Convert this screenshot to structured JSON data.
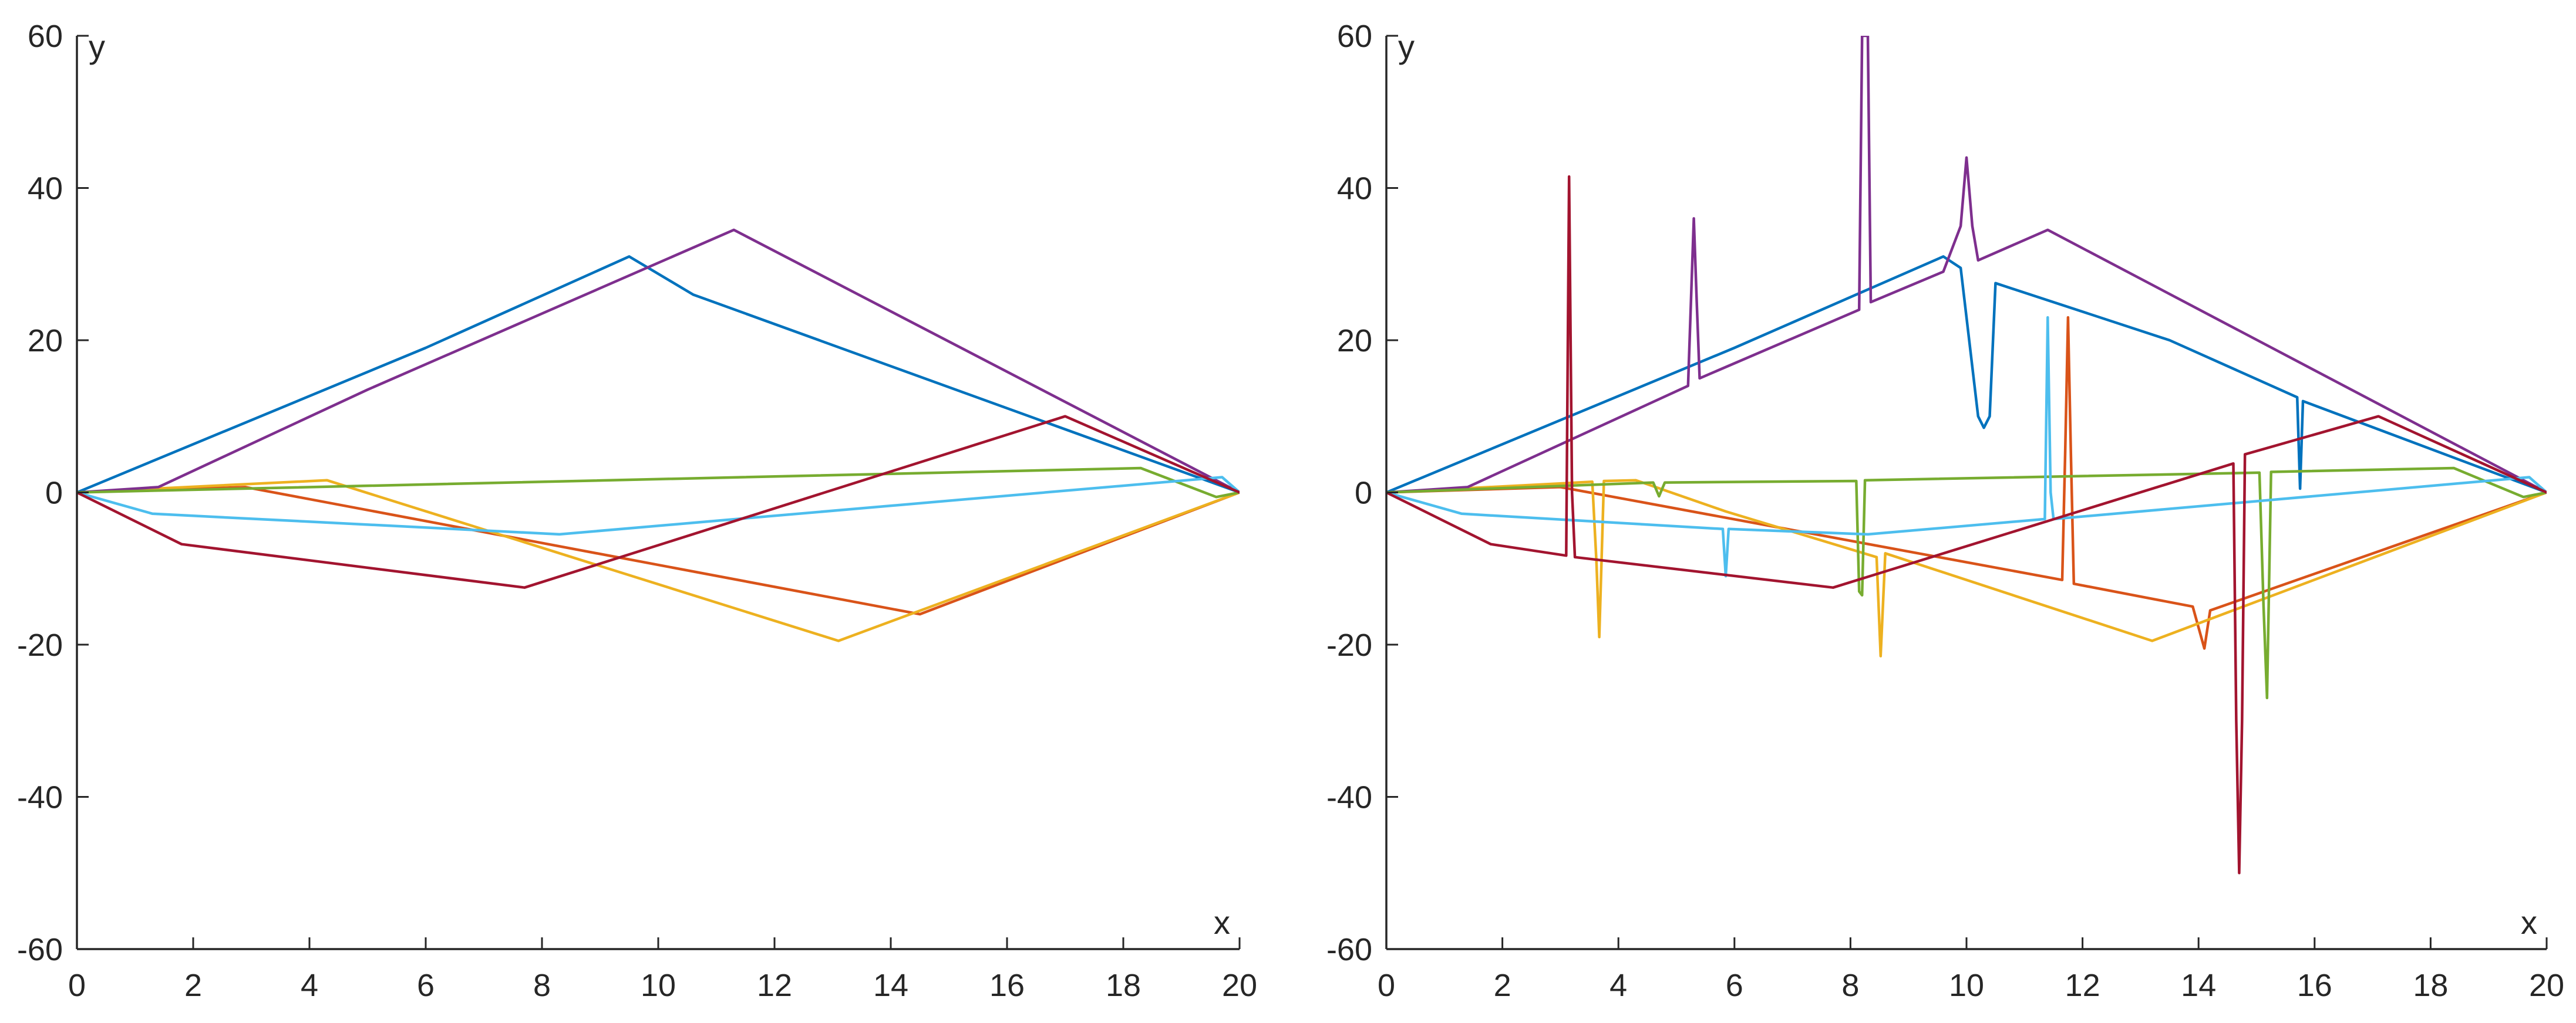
{
  "figure": {
    "panels": 2
  },
  "chart_data": [
    {
      "type": "line",
      "title": "",
      "xlabel": "x",
      "ylabel": "y",
      "xlim": [
        0,
        20
      ],
      "ylim": [
        -60,
        60
      ],
      "xticks": [
        0,
        2,
        4,
        6,
        8,
        10,
        12,
        14,
        16,
        18,
        20
      ],
      "yticks": [
        -60,
        -40,
        -20,
        0,
        20,
        40,
        60
      ],
      "xtick_labels": [
        "0",
        "2",
        "4",
        "6",
        "8",
        "10",
        "12",
        "14",
        "16",
        "18",
        "20"
      ],
      "ytick_labels": [
        "-60",
        "-40",
        "-20",
        "0",
        "20",
        "40",
        "60"
      ],
      "grid": false,
      "series": [
        {
          "name": "blue",
          "color": "#0072BD",
          "x": [
            0,
            6,
            9.5,
            10.6,
            20
          ],
          "y": [
            0,
            19,
            31,
            26,
            0
          ]
        },
        {
          "name": "orange",
          "color": "#D95319",
          "x": [
            0,
            2.9,
            14.5,
            20
          ],
          "y": [
            0,
            0.7,
            -16,
            0
          ]
        },
        {
          "name": "yellow",
          "color": "#EDB120",
          "x": [
            0,
            4.3,
            13.1,
            20
          ],
          "y": [
            0,
            1.6,
            -19.5,
            0
          ]
        },
        {
          "name": "purple",
          "color": "#7E2F8E",
          "x": [
            0,
            1.4,
            5,
            11.3,
            20
          ],
          "y": [
            0,
            0.7,
            13.5,
            34.5,
            0
          ]
        },
        {
          "name": "green",
          "color": "#77AC30",
          "x": [
            0,
            18.3,
            19.6,
            20
          ],
          "y": [
            0,
            3.2,
            -0.6,
            0
          ]
        },
        {
          "name": "light-blue",
          "color": "#4DBEEE",
          "x": [
            0,
            1.3,
            8.3,
            19.7,
            20
          ],
          "y": [
            0,
            -2.8,
            -5.5,
            2,
            0
          ]
        },
        {
          "name": "dark-red",
          "color": "#A2142F",
          "x": [
            0,
            1.8,
            7.7,
            17,
            20
          ],
          "y": [
            0,
            -6.8,
            -12.5,
            10,
            0
          ]
        }
      ]
    },
    {
      "type": "line",
      "title": "",
      "xlabel": "x",
      "ylabel": "y",
      "xlim": [
        0,
        20
      ],
      "ylim": [
        -60,
        60
      ],
      "xticks": [
        0,
        2,
        4,
        6,
        8,
        10,
        12,
        14,
        16,
        18,
        20
      ],
      "yticks": [
        -60,
        -40,
        -20,
        0,
        20,
        40,
        60
      ],
      "xtick_labels": [
        "0",
        "2",
        "4",
        "6",
        "8",
        "10",
        "12",
        "14",
        "16",
        "18",
        "20"
      ],
      "ytick_labels": [
        "-60",
        "-40",
        "-20",
        "0",
        "20",
        "40",
        "60"
      ],
      "grid": false,
      "series": [
        {
          "name": "blue",
          "color": "#0072BD",
          "x": [
            0,
            6,
            9.6,
            9.9,
            10.2,
            10.3,
            10.4,
            10.5,
            13.5,
            15.7,
            15.75,
            15.8,
            20
          ],
          "y": [
            0,
            19,
            31,
            29.5,
            10,
            8.5,
            10,
            27.5,
            20,
            12.5,
            0.5,
            12,
            0
          ]
        },
        {
          "name": "orange",
          "color": "#D95319",
          "x": [
            0,
            3,
            11.65,
            11.7,
            11.75,
            11.8,
            11.85,
            13.9,
            14.1,
            14.2,
            20
          ],
          "y": [
            0,
            0.7,
            -11.5,
            5,
            23,
            5,
            -12,
            -15,
            -20.5,
            -15.5,
            0
          ]
        },
        {
          "name": "yellow",
          "color": "#EDB120",
          "x": [
            0,
            3.55,
            3.62,
            3.67,
            3.75,
            4.3,
            5.85,
            8.45,
            8.52,
            8.6,
            13.2,
            20
          ],
          "y": [
            0,
            1.4,
            -9,
            -19,
            1.5,
            1.6,
            -2.5,
            -8.5,
            -21.5,
            -8,
            -19.5,
            0
          ]
        },
        {
          "name": "purple",
          "color": "#7E2F8E",
          "x": [
            0,
            1.4,
            5.2,
            5.25,
            5.3,
            5.35,
            5.4,
            8.15,
            8.2,
            8.3,
            8.35,
            9.6,
            9.9,
            10,
            10.1,
            10.2,
            11.4,
            20
          ],
          "y": [
            0,
            0.7,
            14,
            25,
            36,
            25,
            15,
            24,
            60,
            60,
            25,
            29,
            35,
            44,
            35,
            30.5,
            34.5,
            0
          ]
        },
        {
          "name": "green",
          "color": "#77AC30",
          "x": [
            0,
            4.6,
            4.7,
            4.8,
            8.1,
            8.15,
            8.2,
            8.25,
            15.05,
            15.12,
            15.18,
            15.25,
            18.4,
            19.6,
            20
          ],
          "y": [
            0,
            1.3,
            -0.5,
            1.3,
            1.5,
            -13,
            -13.5,
            1.6,
            2.6,
            -15,
            -27,
            2.7,
            3.2,
            -0.6,
            0
          ]
        },
        {
          "name": "light-blue",
          "color": "#4DBEEE",
          "x": [
            0,
            1.3,
            5.8,
            5.85,
            5.9,
            8.3,
            11.35,
            11.4,
            11.45,
            11.5,
            19.7,
            20
          ],
          "y": [
            0,
            -2.8,
            -4.8,
            -11,
            -4.8,
            -5.5,
            -3.5,
            23,
            0,
            -3.5,
            2,
            0
          ]
        },
        {
          "name": "dark-red",
          "color": "#A2142F",
          "x": [
            0,
            1.8,
            3.1,
            3.15,
            3.2,
            3.25,
            7.7,
            14.6,
            14.65,
            14.7,
            14.75,
            14.8,
            17.1,
            20
          ],
          "y": [
            0,
            -6.8,
            -8.3,
            41.5,
            0,
            -8.5,
            -12.5,
            3.8,
            -30,
            -50,
            -30,
            5,
            10,
            0
          ]
        }
      ]
    }
  ]
}
